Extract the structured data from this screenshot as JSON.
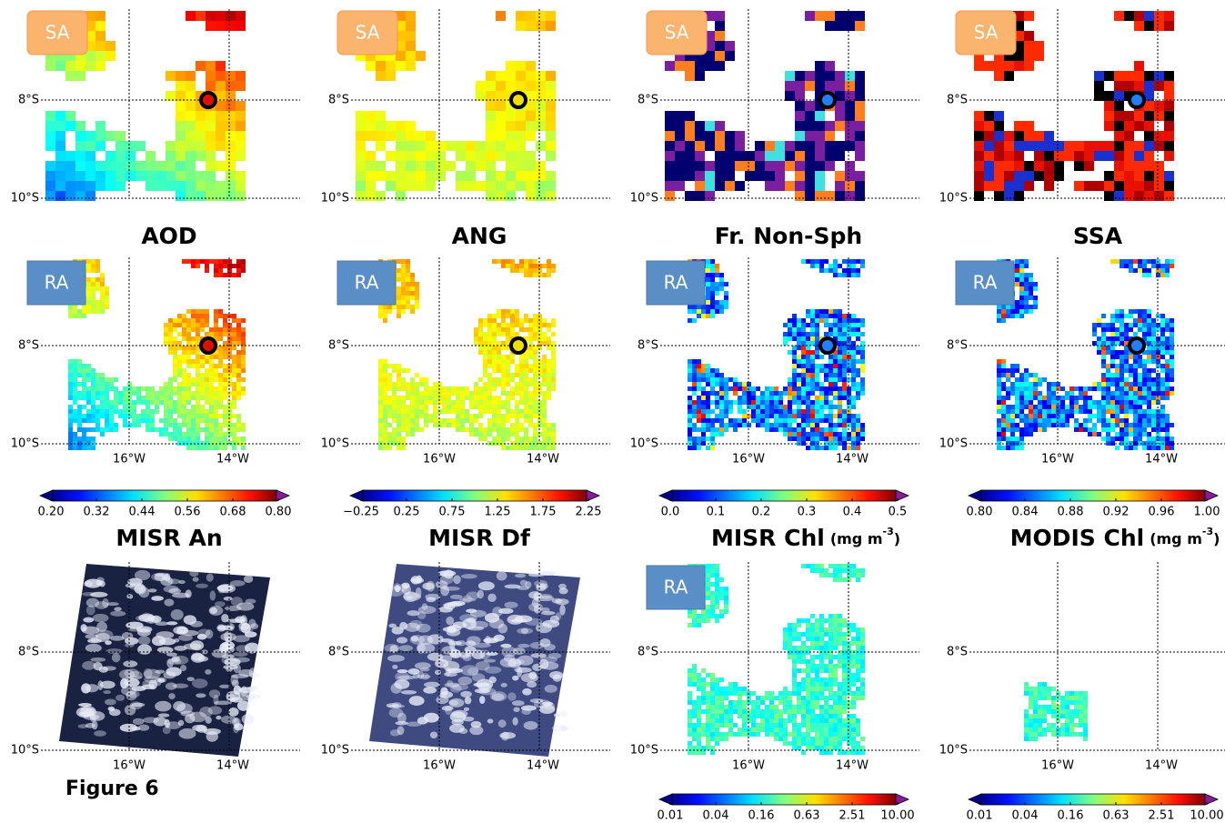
{
  "lat_labels": [
    "8°S",
    "10°S"
  ],
  "lon_labels": [
    "16°W",
    "14°W"
  ],
  "figure_label": "Figure 6",
  "columns": [
    {
      "top_badge": "SA",
      "title": "AOD",
      "mid_badge": "RA",
      "colorbar_ticks": [
        "0.20",
        "0.32",
        "0.44",
        "0.56",
        "0.68",
        "0.80"
      ],
      "bottom_title": "MISR An"
    },
    {
      "top_badge": "SA",
      "title": "ANG",
      "mid_badge": "RA",
      "colorbar_ticks": [
        "−0.25",
        "0.25",
        "0.75",
        "1.25",
        "1.75",
        "2.25"
      ],
      "bottom_title": "MISR Df"
    },
    {
      "top_badge": "SA",
      "title": "Fr. Non-Sph",
      "mid_badge": "RA",
      "colorbar_ticks": [
        "0.0",
        "0.1",
        "0.2",
        "0.3",
        "0.4",
        "0.5"
      ],
      "bottom_title": "MISR Chl",
      "bottom_unit": [
        "(mg m",
        "-3",
        ")"
      ],
      "bottom_badge": "RA",
      "bottom_colorbar_ticks": [
        "0.01",
        "0.04",
        "0.16",
        "0.63",
        "2.51",
        "10.00"
      ]
    },
    {
      "top_badge": "SA",
      "title": "SSA",
      "mid_badge": "RA",
      "colorbar_ticks": [
        "0.80",
        "0.84",
        "0.88",
        "0.92",
        "0.96",
        "1.00"
      ],
      "bottom_title": "MODIS Chl",
      "bottom_unit": [
        "(mg m",
        "-3",
        ")"
      ],
      "bottom_colorbar_ticks": [
        "0.01",
        "0.04",
        "0.16",
        "0.63",
        "2.51",
        "10.00"
      ]
    }
  ]
}
